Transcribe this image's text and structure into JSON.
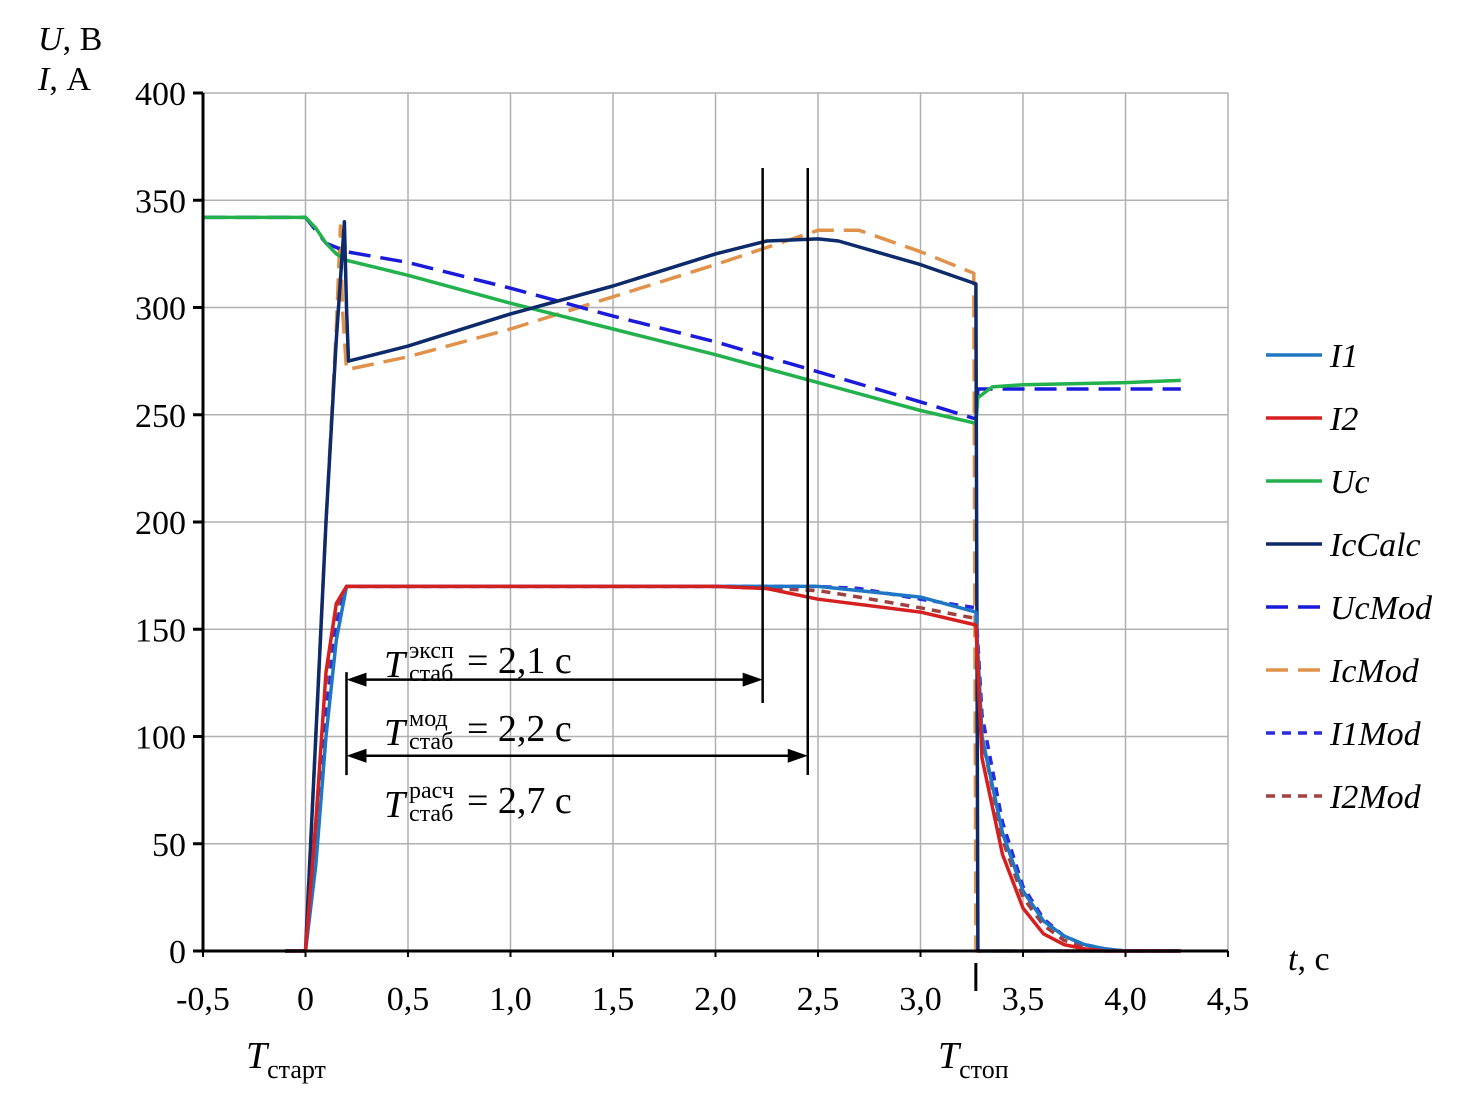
{
  "chart_data": {
    "type": "line",
    "ylabel_u": "U",
    "ylabel_u_unit": ", В",
    "ylabel_i": "I",
    "ylabel_i_unit": ", А",
    "xlabel": "t",
    "xlabel_unit": ", с",
    "xlim": [
      -0.5,
      4.5
    ],
    "ylim": [
      0,
      400
    ],
    "x_ticks": [
      "-0,5",
      "0",
      "0,5",
      "1,0",
      "1,5",
      "2,0",
      "2,5",
      "3,0",
      "3,5",
      "4,0",
      "4,5"
    ],
    "y_ticks": [
      "0",
      "50",
      "100",
      "150",
      "200",
      "250",
      "300",
      "350",
      "400"
    ],
    "grid": true,
    "legend_position": "right",
    "annotations": {
      "t_start": {
        "main": "T",
        "sub": "старт",
        "x": 0.2
      },
      "t_stop": {
        "main": "T",
        "sub": "стоп",
        "x": 3.27
      },
      "stab_exp": {
        "main": "T",
        "sup": "эксп",
        "sub": "стаб",
        "value": " = 2,1 с",
        "x_from": 0.2,
        "x_to": 2.23
      },
      "stab_mod": {
        "main": "T",
        "sup": "мод",
        "sub": "стаб",
        "value": " = 2,2 с",
        "x_from": 0.2,
        "x_to": 2.45
      },
      "stab_calc": {
        "main": "T",
        "sup": "расч",
        "sub": "стаб",
        "value": " = 2,7 с"
      }
    },
    "series": [
      {
        "name": "I1",
        "color": "#1f77c4",
        "dash": "solid",
        "x": [
          -0.1,
          0,
          0.05,
          0.1,
          0.15,
          0.2,
          0.5,
          1.0,
          1.5,
          2.0,
          2.5,
          3.0,
          3.27,
          3.3,
          3.4,
          3.5,
          3.6,
          3.7,
          3.8,
          3.9,
          4.0,
          4.27
        ],
        "y": [
          0,
          0,
          40,
          100,
          145,
          170,
          170,
          170,
          170,
          170,
          170,
          165,
          158,
          100,
          55,
          28,
          14,
          7,
          3,
          1,
          0,
          0
        ]
      },
      {
        "name": "I2",
        "color": "#d62020",
        "dash": "solid",
        "x": [
          -0.1,
          0,
          0.05,
          0.1,
          0.15,
          0.2,
          0.5,
          1.0,
          1.5,
          2.0,
          2.25,
          2.5,
          3.0,
          3.27,
          3.3,
          3.4,
          3.5,
          3.6,
          3.7,
          3.8,
          3.9,
          4.0,
          4.27
        ],
        "y": [
          0,
          0,
          60,
          130,
          162,
          170,
          170,
          170,
          170,
          170,
          169,
          164,
          158,
          152,
          90,
          45,
          20,
          8,
          3,
          1,
          0,
          0,
          0
        ]
      },
      {
        "name": "Uc",
        "color": "#22b14c",
        "dash": "solid",
        "x": [
          -0.5,
          0,
          0.05,
          0.1,
          0.15,
          0.2,
          0.5,
          1.0,
          1.5,
          2.0,
          2.5,
          3.0,
          3.27,
          3.28,
          3.35,
          3.5,
          4.0,
          4.27
        ],
        "y": [
          342,
          342,
          337,
          330,
          325,
          322,
          315,
          302,
          290,
          278,
          265,
          252,
          246,
          258,
          263,
          264,
          265,
          266
        ]
      },
      {
        "name": "IcCalc",
        "color": "#0d2a6b",
        "dash": "solid",
        "x": [
          -0.1,
          0,
          0.05,
          0.1,
          0.15,
          0.19,
          0.2,
          0.21,
          0.5,
          1.0,
          1.5,
          2.0,
          2.25,
          2.5,
          2.6,
          3.0,
          3.27,
          3.28,
          3.29,
          3.3,
          4.27
        ],
        "y": [
          0,
          0,
          100,
          200,
          285,
          340,
          300,
          275,
          282,
          297,
          310,
          325,
          331,
          332,
          331,
          320,
          311,
          0,
          0,
          0,
          0
        ]
      },
      {
        "name": "UcMod",
        "color": "#1a1adb",
        "dash": "long",
        "x": [
          -0.5,
          0,
          0.05,
          0.1,
          0.15,
          0.2,
          0.5,
          1.0,
          1.5,
          2.0,
          2.5,
          3.0,
          3.27,
          3.28,
          4.27
        ],
        "y": [
          342,
          342,
          336,
          330,
          328,
          326,
          321,
          309,
          296,
          284,
          270,
          256,
          248,
          262,
          262
        ]
      },
      {
        "name": "IcMod",
        "color": "#e0914a",
        "dash": "long",
        "x": [
          -0.1,
          0,
          0.05,
          0.1,
          0.15,
          0.17,
          0.18,
          0.2,
          0.5,
          1.0,
          1.5,
          2.0,
          2.5,
          2.7,
          3.0,
          3.26,
          3.27,
          3.28,
          4.27
        ],
        "y": [
          0,
          0,
          100,
          200,
          290,
          338,
          300,
          271,
          277,
          290,
          305,
          320,
          336,
          336,
          326,
          316,
          0,
          0,
          0
        ]
      },
      {
        "name": "I1Mod",
        "color": "#2a2ae0",
        "dash": "short",
        "x": [
          -0.1,
          0,
          0.05,
          0.1,
          0.15,
          0.2,
          0.5,
          1.0,
          1.5,
          2.0,
          2.5,
          2.7,
          3.0,
          3.27,
          3.3,
          3.4,
          3.5,
          3.6,
          3.7,
          3.8,
          3.9,
          4.0,
          4.27
        ],
        "y": [
          0,
          0,
          45,
          110,
          152,
          170,
          170,
          170,
          170,
          170,
          170,
          169,
          164,
          160,
          110,
          60,
          30,
          15,
          7,
          3,
          1,
          0,
          0
        ]
      },
      {
        "name": "I2Mod",
        "color": "#a04040",
        "dash": "short",
        "x": [
          -0.1,
          0,
          0.05,
          0.1,
          0.15,
          0.2,
          0.5,
          1.0,
          1.5,
          2.0,
          2.5,
          2.7,
          3.0,
          3.27,
          3.3,
          3.4,
          3.5,
          3.6,
          3.7,
          3.8,
          3.9,
          4.0,
          4.27
        ],
        "y": [
          0,
          0,
          55,
          125,
          160,
          170,
          170,
          170,
          170,
          170,
          168,
          165,
          160,
          155,
          100,
          52,
          25,
          12,
          5,
          2,
          1,
          0,
          0
        ]
      }
    ]
  }
}
